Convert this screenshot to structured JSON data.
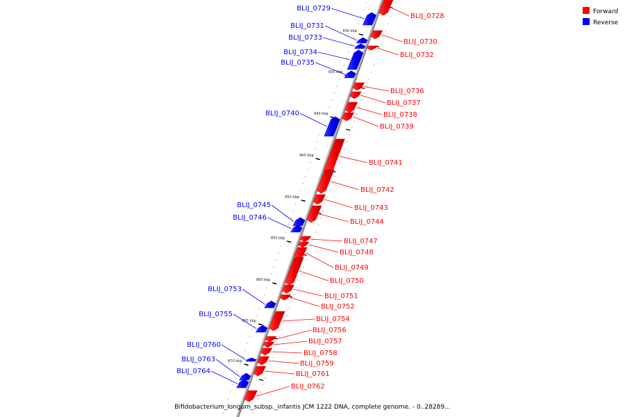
{
  "legend": {
    "forward_label": "Forward",
    "reverse_label": "Reverse",
    "forward_color": "#ff0000",
    "reverse_color": "#0000ff"
  },
  "caption": "Bifidobacterium_longum_subsp._infantis JCM 1222 DNA, complete genome. - 0..28289...",
  "ticks": [
    "830 kbp",
    "835 kbp",
    "840 kbp",
    "845 kbp",
    "850 kbp",
    "855 kbp",
    "860 kbp",
    "865 kbp",
    "870 kbp"
  ],
  "genes": [
    {
      "label": "BLIJ_0728",
      "strand": "forward"
    },
    {
      "label": "BLIJ_0729",
      "strand": "reverse"
    },
    {
      "label": "BLIJ_0730",
      "strand": "forward"
    },
    {
      "label": "BLIJ_0731",
      "strand": "reverse"
    },
    {
      "label": "BLIJ_0732",
      "strand": "forward"
    },
    {
      "label": "BLIJ_0733",
      "strand": "reverse"
    },
    {
      "label": "BLIJ_0734",
      "strand": "reverse"
    },
    {
      "label": "BLIJ_0735",
      "strand": "reverse"
    },
    {
      "label": "BLIJ_0736",
      "strand": "forward"
    },
    {
      "label": "BLIJ_0737",
      "strand": "forward"
    },
    {
      "label": "BLIJ_0738",
      "strand": "forward"
    },
    {
      "label": "BLIJ_0739",
      "strand": "forward"
    },
    {
      "label": "BLIJ_0740",
      "strand": "reverse"
    },
    {
      "label": "BLIJ_0741",
      "strand": "forward"
    },
    {
      "label": "BLIJ_0742",
      "strand": "forward"
    },
    {
      "label": "BLIJ_0743",
      "strand": "forward"
    },
    {
      "label": "BLIJ_0744",
      "strand": "forward"
    },
    {
      "label": "BLIJ_0745",
      "strand": "reverse"
    },
    {
      "label": "BLIJ_0746",
      "strand": "reverse"
    },
    {
      "label": "BLIJ_0747",
      "strand": "forward"
    },
    {
      "label": "BLIJ_0748",
      "strand": "forward"
    },
    {
      "label": "BLIJ_0749",
      "strand": "forward"
    },
    {
      "label": "BLIJ_0750",
      "strand": "forward"
    },
    {
      "label": "BLIJ_0751",
      "strand": "forward"
    },
    {
      "label": "BLIJ_0752",
      "strand": "forward"
    },
    {
      "label": "BLIJ_0753",
      "strand": "reverse"
    },
    {
      "label": "BLIJ_0754",
      "strand": "forward"
    },
    {
      "label": "BLIJ_0755",
      "strand": "reverse"
    },
    {
      "label": "BLIJ_0756",
      "strand": "forward"
    },
    {
      "label": "BLIJ_0757",
      "strand": "forward"
    },
    {
      "label": "BLIJ_0758",
      "strand": "forward"
    },
    {
      "label": "BLIJ_0759",
      "strand": "forward"
    },
    {
      "label": "BLIJ_0760",
      "strand": "reverse"
    },
    {
      "label": "BLIJ_0761",
      "strand": "forward"
    },
    {
      "label": "BLIJ_0762",
      "strand": "forward"
    },
    {
      "label": "BLIJ_0763",
      "strand": "reverse"
    },
    {
      "label": "BLIJ_0764",
      "strand": "reverse"
    }
  ]
}
